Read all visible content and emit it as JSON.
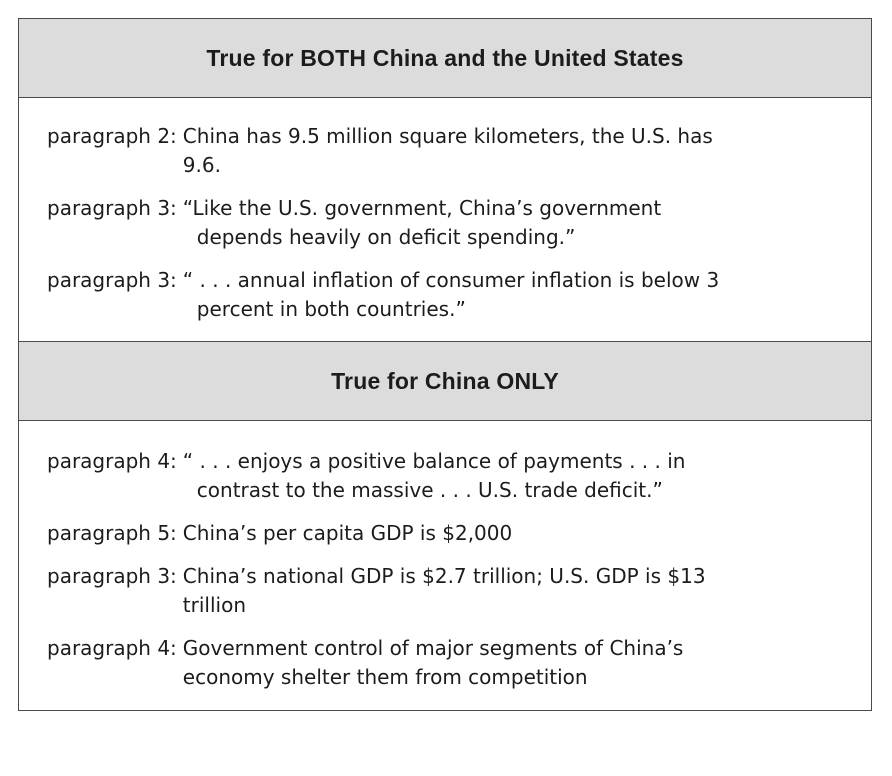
{
  "sections": [
    {
      "heading": "True for BOTH China and the United States",
      "entries": [
        {
          "ref": "paragraph 2:",
          "line1": "China has 9.5 million square kilometers, the U.S. has",
          "line2": "9.6."
        },
        {
          "ref": "paragraph 3:",
          "line1": "“Like the U.S. government, China’s government",
          "line2": "depends heavily on deficit spending.”"
        },
        {
          "ref": "paragraph 3:",
          "line1": "“ . . . annual inflation of consumer inflation is below 3",
          "line2": "percent in both countries.”"
        }
      ]
    },
    {
      "heading": "True for China ONLY",
      "entries": [
        {
          "ref": "paragraph 4:",
          "line1": "“ . . . enjoys a positive balance of payments . . . in",
          "line2": "contrast to the massive . . . U.S. trade deficit.”"
        },
        {
          "ref": "paragraph 5:",
          "line1": "China’s per capita GDP is $2,000",
          "line2": ""
        },
        {
          "ref": "paragraph 3:",
          "line1": "China’s national GDP is $2.7 trillion; U.S. GDP is $13",
          "line2": "trillion"
        },
        {
          "ref": "paragraph 4:",
          "line1": "Government control of major segments of China’s",
          "line2": "economy shelter them from competition"
        }
      ]
    }
  ]
}
